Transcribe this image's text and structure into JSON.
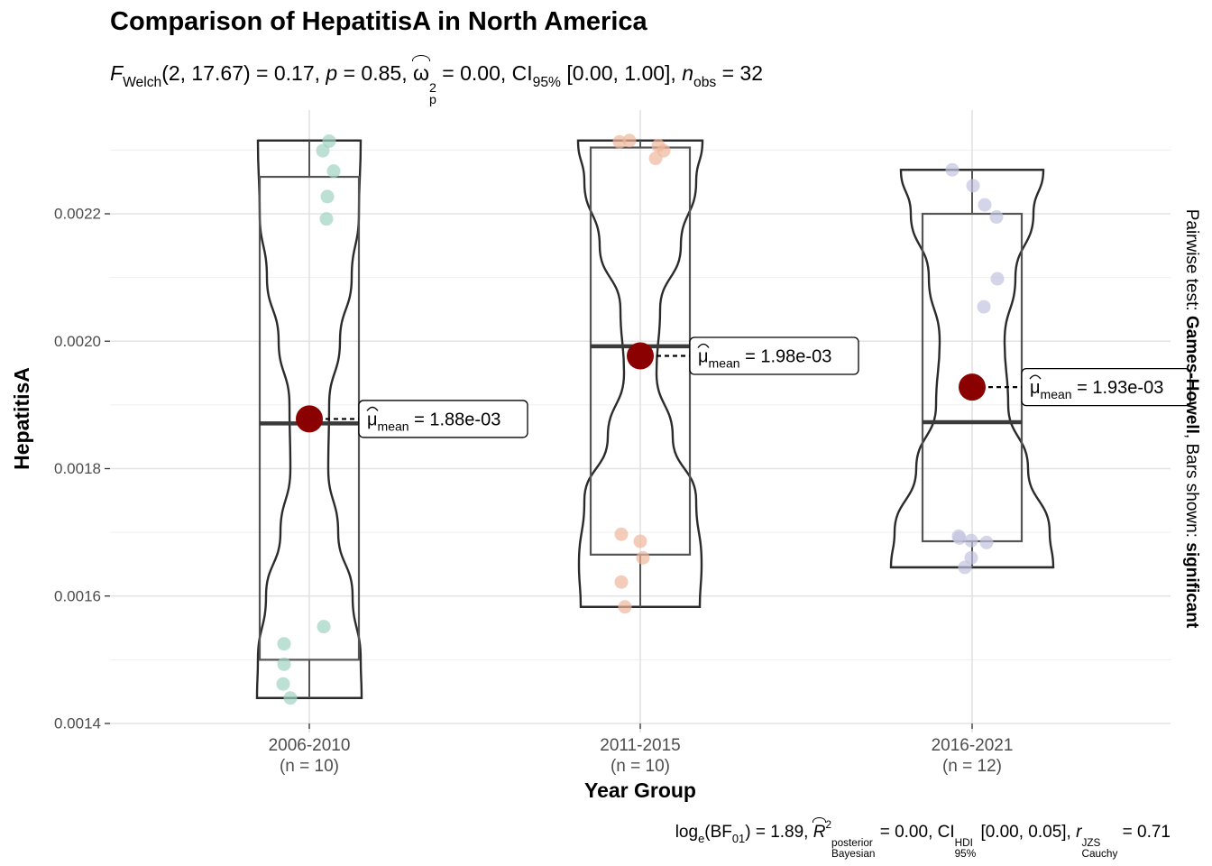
{
  "title": "Comparison of HepatitisA in North America",
  "subtitle": {
    "stat_symbol": "F",
    "stat_sub": "Welch",
    "stat_args": "(2, 17.67)",
    "stat_value": " = 0.17, ",
    "p_symbol": "p",
    "p_value": " = 0.85, ",
    "es_symbol": "ω",
    "es_sub": "p",
    "es_sup": "2",
    "es_value": " = 0.00, CI",
    "ci_sub": "95%",
    "ci_value": " [0.00, 1.00], ",
    "n_symbol": "n",
    "n_sub": "obs",
    "n_value": " = 32"
  },
  "caption": {
    "bf_prefix": "log",
    "bf_e": "e",
    "bf_open": "(BF",
    "bf_sub": "01",
    "bf_value": ") = 1.89, ",
    "r_symbol": "R",
    "r_sup": "2",
    "r_upper": "posterior",
    "r_lower": "Bayesian",
    "r_value": " = 0.00, CI",
    "hdi_upper": "HDI",
    "hdi_lower": "95%",
    "hdi_value": " [0.00, 0.05], ",
    "rc_symbol": "r",
    "rc_upper": "JZS",
    "rc_lower": "Cauchy",
    "rc_value": " = 0.71"
  },
  "chart_data": {
    "type": "violin-box-scatter",
    "xlabel": "Year Group",
    "ylabel": "HepatitisA",
    "ylim": [
      0.0014,
      0.0023
    ],
    "yticks": [
      "0.0014",
      "0.0016",
      "0.0018",
      "0.0020",
      "0.0022"
    ],
    "ytick_values": [
      0.0014,
      0.0016,
      0.0018,
      0.002,
      0.0022
    ],
    "grid": true,
    "side_label": {
      "prefix": "Pairwise test: ",
      "test": "Games-Howell",
      "middle": ", Bars shown: ",
      "bars": "significant"
    },
    "mean_label_prefix": "μ",
    "mean_label_sub": "mean",
    "groups": [
      {
        "label": "2006-2010",
        "n_label": "(n = 10)",
        "color": "#9fd3c0",
        "q1": 0.0015,
        "median": 0.001871,
        "q3": 0.002258,
        "wmin": 0.00144,
        "wmax": 0.002315,
        "mean": 0.001878,
        "mean_label": " = 1.88e-03",
        "points": [
          0.002314,
          0.002299,
          0.002267,
          0.002227,
          0.002192,
          0.001552,
          0.001525,
          0.001493,
          0.001462,
          0.00144
        ]
      },
      {
        "label": "2011-2015",
        "n_label": "(n = 10)",
        "color": "#f0b89c",
        "q1": 0.001665,
        "median": 0.001992,
        "q3": 0.002304,
        "wmin": 0.001583,
        "wmax": 0.002315,
        "mean": 0.001977,
        "mean_label": " = 1.98e-03",
        "points": [
          0.002313,
          0.002315,
          0.002307,
          0.002299,
          0.002287,
          0.001697,
          0.001686,
          0.00166,
          0.001622,
          0.001583
        ]
      },
      {
        "label": "2016-2021",
        "n_label": "(n = 12)",
        "color": "#c3c3e0",
        "q1": 0.001686,
        "median": 0.001873,
        "q3": 0.0022,
        "wmin": 0.001645,
        "wmax": 0.002269,
        "mean": 0.001928,
        "mean_label": " = 1.93e-03",
        "points": [
          0.002269,
          0.002244,
          0.002214,
          0.002195,
          0.002098,
          0.002054,
          0.001694,
          0.001691,
          0.001687,
          0.001684,
          0.00166,
          0.001645
        ]
      }
    ],
    "mean_color": "#8b0000"
  }
}
